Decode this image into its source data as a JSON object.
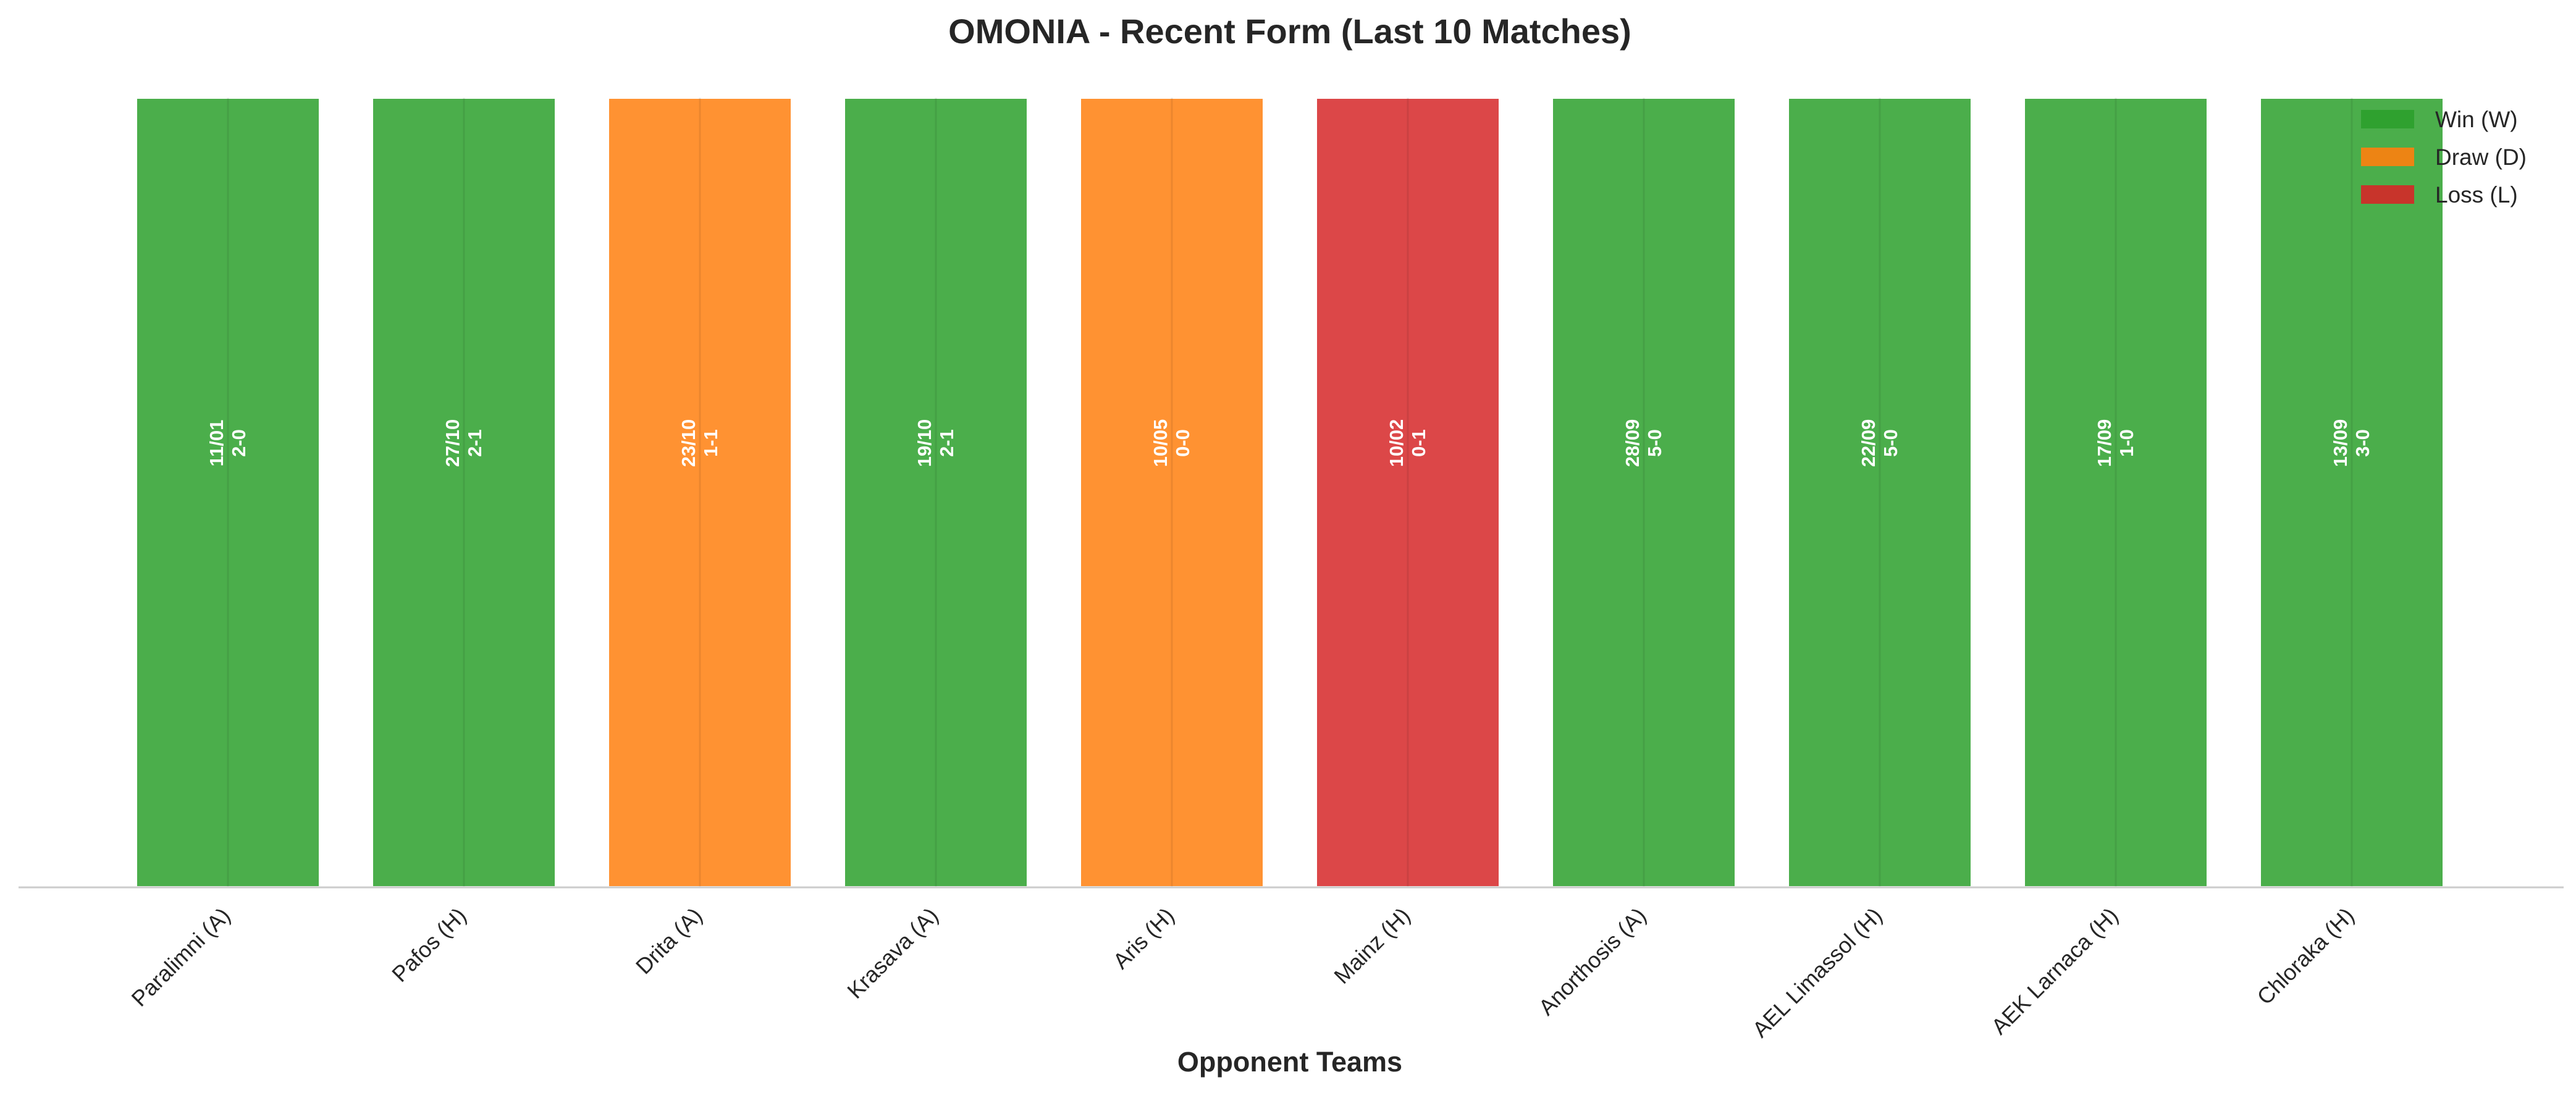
{
  "chart_data": {
    "type": "bar",
    "title": "OMONIA - Recent Form (Last 10 Matches)",
    "xlabel": "Opponent Teams",
    "ylabel": "",
    "ylim": [
      0,
      1
    ],
    "grid": false,
    "legend_position": "top-right",
    "categories": [
      "Paralimni (A)",
      "Pafos (H)",
      "Drita (A)",
      "Krasava (A)",
      "Aris (H)",
      "Mainz (H)",
      "Anorthosis (A)",
      "AEL Limassol (H)",
      "AEK Larnaca (H)",
      "Chloraka (H)"
    ],
    "values": [
      1,
      1,
      1,
      1,
      1,
      1,
      1,
      1,
      1,
      1
    ],
    "results": [
      "W",
      "W",
      "D",
      "W",
      "D",
      "L",
      "W",
      "W",
      "W",
      "W"
    ],
    "dates": [
      "11/01",
      "27/10",
      "23/10",
      "19/10",
      "10/05",
      "10/02",
      "28/09",
      "22/09",
      "17/09",
      "13/09"
    ],
    "scores": [
      "2-0",
      "2-1",
      "1-1",
      "2-1",
      "0-0",
      "0-1",
      "5-0",
      "5-0",
      "1-0",
      "3-0"
    ],
    "legend": [
      {
        "key": "W",
        "label": "Win (W)",
        "color": "#2ca02c"
      },
      {
        "key": "D",
        "label": "Draw (D)",
        "color": "#ff7f0e"
      },
      {
        "key": "L",
        "label": "Loss (L)",
        "color": "#d62728"
      }
    ],
    "colors": {
      "W": "#2ca02c",
      "D": "#ff7f0e",
      "L": "#d62728"
    }
  }
}
